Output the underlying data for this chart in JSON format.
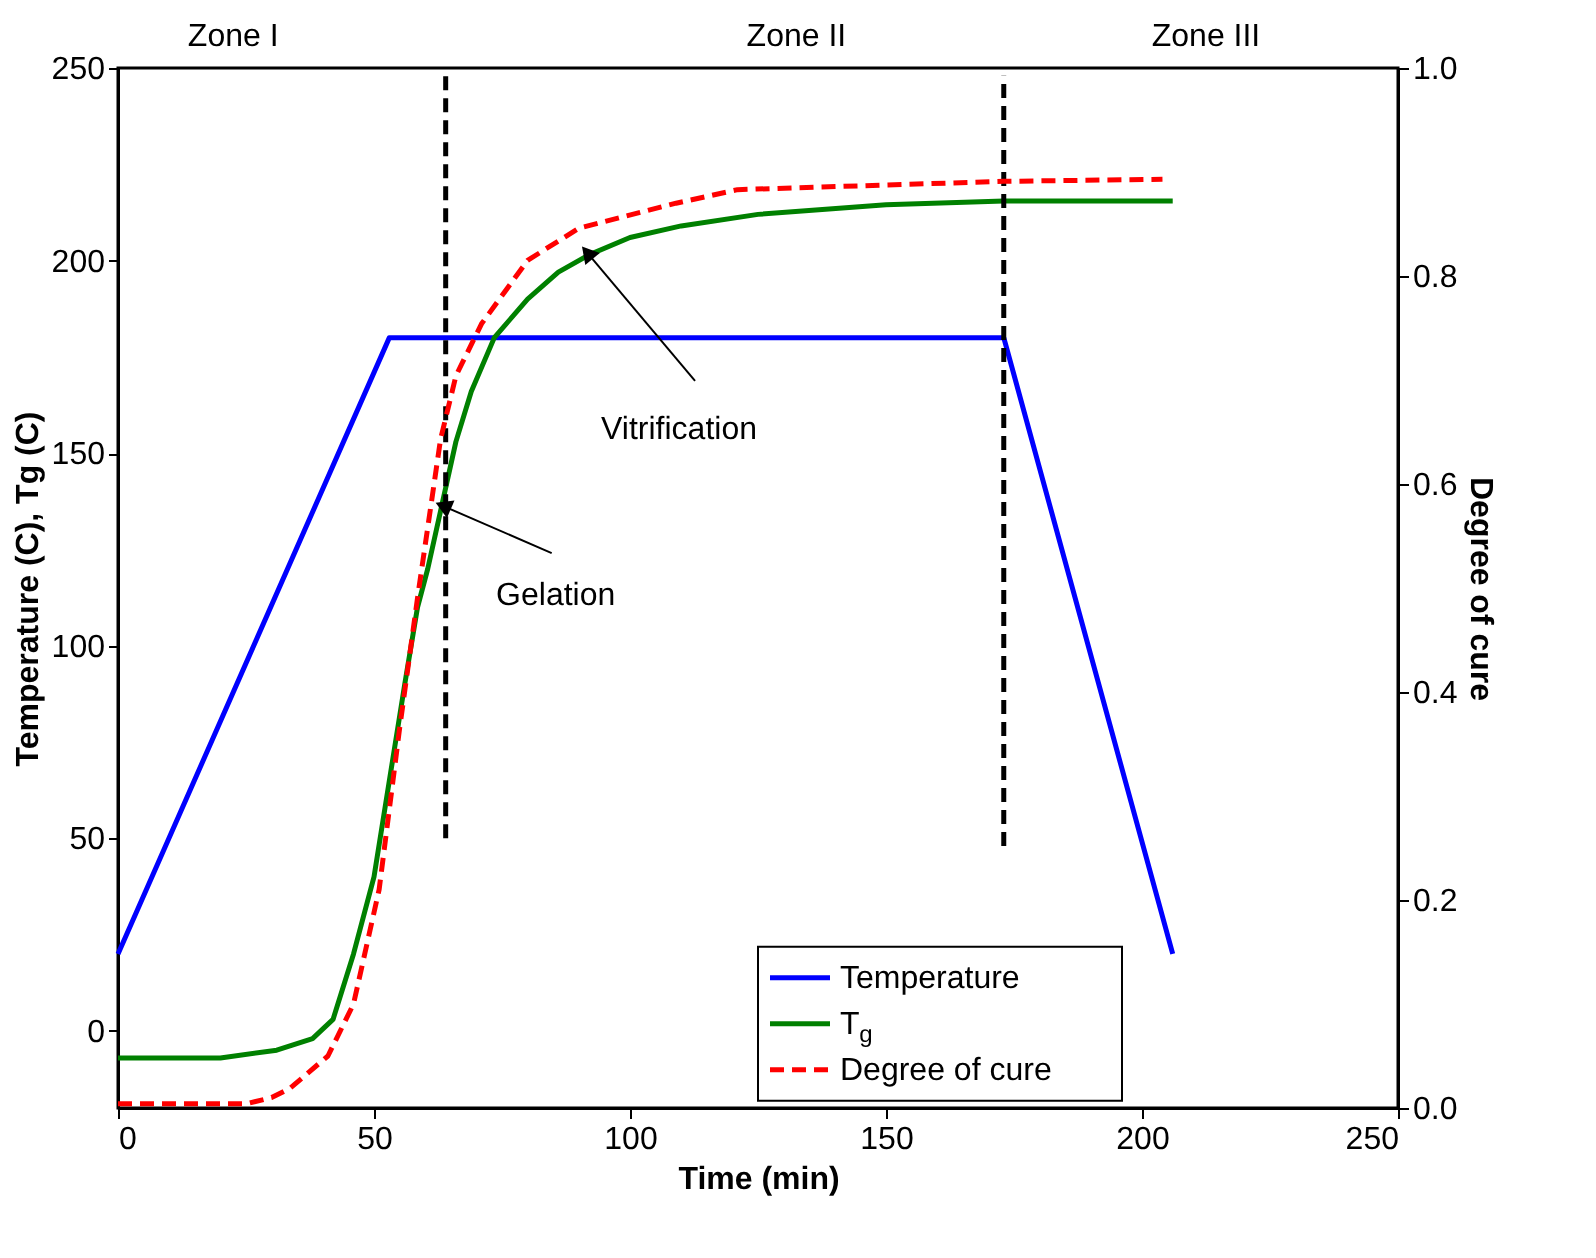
{
  "chart_data": {
    "type": "line",
    "xlabel": "Time (min)",
    "ylabel": "Temperature (C), Tg (C)",
    "y2label": "Degree of cure",
    "xlim": [
      0,
      250
    ],
    "xticks": [
      0,
      50,
      100,
      150,
      200,
      250
    ],
    "ylim": [
      -20,
      250
    ],
    "yticks": [
      0,
      50,
      100,
      150,
      200,
      250
    ],
    "y2lim": [
      0,
      1.0
    ],
    "y2ticks": [
      {
        "value": 0,
        "label": "0.0"
      },
      0.2,
      0.4,
      0.6,
      0.8,
      {
        "value": 1,
        "label": "1.0"
      }
    ],
    "grid": false,
    "legend": "bottom right",
    "marker": "none",
    "series": [
      {
        "name": "Temperature",
        "color": "#0000ff",
        "line_style": "solid",
        "x": [
          0,
          53,
          173,
          206
        ],
        "values": [
          20,
          180,
          180,
          20
        ]
      },
      {
        "name": "T$_{g}$",
        "color": "#008000",
        "line_style": "solid",
        "x": [
          0,
          20,
          31,
          38,
          42,
          46,
          50,
          53.6,
          56,
          58.5,
          60.5,
          63,
          66,
          69,
          73.5,
          80,
          86,
          92,
          100,
          110,
          125,
          150,
          173,
          206
        ],
        "values": [
          -7,
          -7,
          -5,
          -2,
          3,
          20,
          40,
          70,
          90,
          110,
          120,
          135,
          153,
          166,
          180,
          190,
          197,
          201.5,
          206,
          209,
          212,
          214.5,
          215.5,
          215.5
        ]
      },
      {
        "name": "Degree of cure",
        "color": "#ff0000",
        "line_style": "dashed",
        "axis": "y2",
        "x": [
          0,
          25,
          30,
          33.6,
          41,
          46,
          51,
          55,
          58.6,
          63,
          66,
          71,
          80,
          90,
          109,
          121,
          173,
          204
        ],
        "values": [
          0.004,
          0.004,
          0.01,
          0.019,
          0.05,
          0.1,
          0.21,
          0.365,
          0.494,
          0.643,
          0.704,
          0.754,
          0.815,
          0.846,
          0.87,
          0.883,
          0.891,
          0.893
        ]
      },
      {
        "color": "#000000",
        "line_style": "dashed",
        "x": [
          64,
          64
        ],
        "values": [
          50,
          248
        ]
      },
      {
        "color": "#000000",
        "line_style": "dashed",
        "x": [
          173,
          173
        ],
        "values": [
          48,
          248
        ]
      }
    ],
    "annotations": [
      {
        "text": "Gelation",
        "x": 64,
        "y": 136
      },
      {
        "text": "Vitrification",
        "x": 92,
        "y": 201.5
      },
      "Zone I",
      "Zone II",
      "Zone III"
    ]
  }
}
